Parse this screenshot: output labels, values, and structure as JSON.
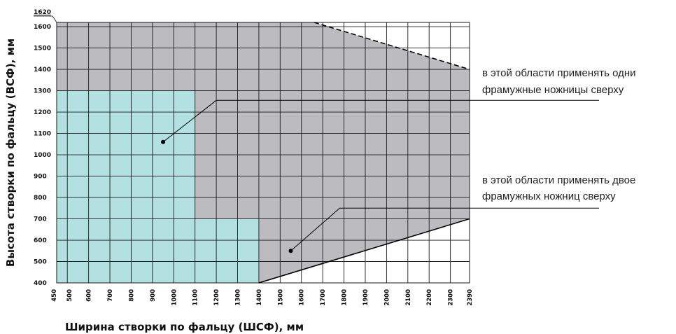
{
  "chart_data": {
    "type": "area",
    "xlabel": "Ширина створки по фальцу (ШСФ), мм",
    "ylabel": "Высота створки по фальцу (ВСФ), мм",
    "xlim": [
      450,
      2390
    ],
    "ylim": [
      400,
      1620
    ],
    "x_ticks": [
      450,
      500,
      600,
      700,
      800,
      900,
      1000,
      1100,
      1200,
      1300,
      1400,
      1500,
      1600,
      1700,
      1800,
      1900,
      2000,
      2100,
      2200,
      2300,
      2390
    ],
    "y_ticks": [
      400,
      500,
      600,
      700,
      800,
      900,
      1000,
      1100,
      1200,
      1300,
      1400,
      1500,
      1600
    ],
    "y_top_label": "1620",
    "grid": true,
    "colors": {
      "gray_region": "#bcbcc0",
      "cyan_region": "#b3e0e0",
      "grid": "#1a1a1a",
      "annotation_line": "#000000"
    },
    "regions": [
      {
        "fill": "gray",
        "polygon": [
          [
            450,
            400
          ],
          [
            1400,
            400
          ],
          [
            2390,
            700
          ],
          [
            2390,
            1400
          ],
          [
            1660,
            1620
          ],
          [
            450,
            1620
          ]
        ]
      },
      {
        "fill": "cyan",
        "polygon": [
          [
            450,
            400
          ],
          [
            1400,
            400
          ],
          [
            1400,
            700
          ],
          [
            1100,
            700
          ],
          [
            1100,
            1300
          ],
          [
            450,
            1300
          ]
        ]
      }
    ],
    "boundaries": [
      {
        "style": "dashed",
        "points": [
          [
            1660,
            1620
          ],
          [
            2390,
            1400
          ]
        ]
      },
      {
        "style": "solid",
        "points": [
          [
            1400,
            400
          ],
          [
            2390,
            700
          ]
        ]
      }
    ],
    "annotations": [
      {
        "text_lines": [
          "в этой области применять одни",
          "фрамужные ножницы сверху"
        ],
        "point": [
          950,
          1060
        ],
        "elbow": [
          1200,
          1255
        ]
      },
      {
        "text_lines": [
          "в этой области применять двое",
          "фрамужных ножниц сверху"
        ],
        "point": [
          1550,
          550
        ],
        "elbow": [
          1780,
          750
        ]
      }
    ]
  }
}
